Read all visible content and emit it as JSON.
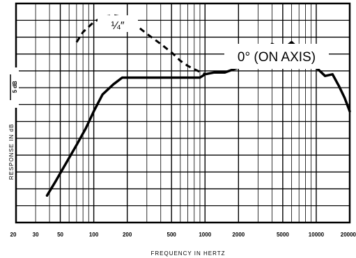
{
  "chart_data": {
    "type": "line",
    "xscale": "log",
    "xlim": [
      20,
      20000
    ],
    "xlabel": "FREQUENCY IN HERTZ",
    "ylabel": "RESPONSE IN dB",
    "scale_marker": "5 dB",
    "x_ticks": [
      "20",
      "30",
      "50",
      "100",
      "200",
      "500",
      "1000",
      "2000",
      "5000",
      "10000",
      "20000"
    ],
    "grid": true,
    "series": [
      {
        "name": "0° (ON AXIS)",
        "style": "solid",
        "points": [
          [
            38,
            1.6
          ],
          [
            45,
            2.4
          ],
          [
            55,
            3.4
          ],
          [
            70,
            4.6
          ],
          [
            85,
            5.6
          ],
          [
            100,
            6.6
          ],
          [
            120,
            7.6
          ],
          [
            150,
            8.2
          ],
          [
            180,
            8.6
          ],
          [
            200,
            8.6
          ],
          [
            300,
            8.6
          ],
          [
            500,
            8.6
          ],
          [
            700,
            8.6
          ],
          [
            900,
            8.6
          ],
          [
            1000,
            8.8
          ],
          [
            1200,
            8.9
          ],
          [
            1500,
            8.9
          ],
          [
            2000,
            9.2
          ],
          [
            2500,
            9.6
          ],
          [
            3000,
            9.8
          ],
          [
            3500,
            10.1
          ],
          [
            4000,
            10.6
          ],
          [
            4300,
            10.5
          ],
          [
            4600,
            9.9
          ],
          [
            5000,
            10.1
          ],
          [
            5500,
            10.5
          ],
          [
            6000,
            10.7
          ],
          [
            7000,
            10.3
          ],
          [
            8000,
            9.8
          ],
          [
            9000,
            9.4
          ],
          [
            10000,
            9.2
          ],
          [
            12000,
            8.7
          ],
          [
            14000,
            8.8
          ],
          [
            16000,
            8.1
          ],
          [
            18000,
            7.4
          ],
          [
            20000,
            6.6
          ]
        ]
      },
      {
        "name": "1/4″",
        "style": "dashed",
        "points": [
          [
            70,
            10.7
          ],
          [
            80,
            11.3
          ],
          [
            100,
            11.9
          ],
          [
            120,
            12.2
          ],
          [
            150,
            12.3
          ],
          [
            180,
            12.2
          ],
          [
            220,
            11.9
          ],
          [
            300,
            11.2
          ],
          [
            400,
            10.6
          ],
          [
            500,
            10.1
          ],
          [
            600,
            9.6
          ],
          [
            700,
            9.3
          ],
          [
            800,
            9.1
          ],
          [
            1000,
            8.8
          ]
        ]
      }
    ],
    "annotations": {
      "quarter_label": "¼″",
      "on_axis_label": "0° (ON AXIS)"
    }
  }
}
